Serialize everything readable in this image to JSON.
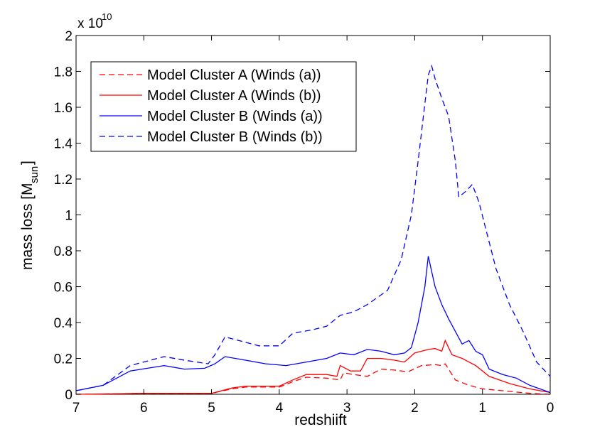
{
  "chart_data": {
    "type": "line",
    "title": "",
    "xlabel": "redshiift",
    "ylabel": "mass loss [M",
    "ylabel_subscript": "sun",
    "ylabel_suffix": "]",
    "y_multiplier_prefix": "x 10",
    "y_multiplier_exponent": "10",
    "xlim": [
      7,
      0
    ],
    "ylim": [
      0,
      2
    ],
    "xticks": [
      7,
      6,
      5,
      4,
      3,
      2,
      1,
      0
    ],
    "xtick_labels": [
      "7",
      "6",
      "5",
      "4",
      "3",
      "2",
      "1",
      "0"
    ],
    "yticks": [
      0,
      0.2,
      0.4,
      0.6,
      0.8,
      1,
      1.2,
      1.4,
      1.6,
      1.8,
      2
    ],
    "ytick_labels": [
      "0",
      "0.2",
      "0.4",
      "0.6",
      "0.8",
      "1",
      "1.2",
      "1.4",
      "1.6",
      "1.8",
      "2"
    ],
    "grid": false,
    "legend_position": "top-left",
    "series": [
      {
        "name": "Model Cluster A (Winds (a))",
        "color": "#ff0000",
        "style": "dashed",
        "points": [
          [
            7,
            0.0
          ],
          [
            6,
            0.005
          ],
          [
            5,
            0.005
          ],
          [
            4.7,
            0.03
          ],
          [
            4.5,
            0.04
          ],
          [
            4,
            0.04
          ],
          [
            3.8,
            0.07
          ],
          [
            3.6,
            0.095
          ],
          [
            3.3,
            0.09
          ],
          [
            3.1,
            0.08
          ],
          [
            3.05,
            0.12
          ],
          [
            2.9,
            0.11
          ],
          [
            2.7,
            0.1
          ],
          [
            2.5,
            0.14
          ],
          [
            2.3,
            0.135
          ],
          [
            2.1,
            0.125
          ],
          [
            1.9,
            0.16
          ],
          [
            1.7,
            0.165
          ],
          [
            1.6,
            0.16
          ],
          [
            1.55,
            0.17
          ],
          [
            1.4,
            0.08
          ],
          [
            1.2,
            0.05
          ],
          [
            1.0,
            0.03
          ],
          [
            0.7,
            0.02
          ],
          [
            0.3,
            0.005
          ],
          [
            0,
            0.0
          ]
        ]
      },
      {
        "name": "Model Cluster A (Winds (b))",
        "color": "#ff0000",
        "style": "solid",
        "points": [
          [
            7,
            0.0
          ],
          [
            6,
            0.005
          ],
          [
            5,
            0.005
          ],
          [
            4.7,
            0.035
          ],
          [
            4.5,
            0.045
          ],
          [
            4,
            0.045
          ],
          [
            3.8,
            0.08
          ],
          [
            3.6,
            0.11
          ],
          [
            3.3,
            0.11
          ],
          [
            3.15,
            0.1
          ],
          [
            3.1,
            0.16
          ],
          [
            2.95,
            0.13
          ],
          [
            2.8,
            0.13
          ],
          [
            2.7,
            0.2
          ],
          [
            2.5,
            0.2
          ],
          [
            2.3,
            0.19
          ],
          [
            2.15,
            0.18
          ],
          [
            2.0,
            0.23
          ],
          [
            1.8,
            0.25
          ],
          [
            1.7,
            0.255
          ],
          [
            1.6,
            0.24
          ],
          [
            1.55,
            0.3
          ],
          [
            1.45,
            0.22
          ],
          [
            1.3,
            0.2
          ],
          [
            1.1,
            0.16
          ],
          [
            0.9,
            0.1
          ],
          [
            0.6,
            0.06
          ],
          [
            0.3,
            0.03
          ],
          [
            0,
            0.01
          ]
        ]
      },
      {
        "name": "Model Cluster B (Winds (a))",
        "color": "#0000ff",
        "style": "solid",
        "points": [
          [
            7,
            0.02
          ],
          [
            6.6,
            0.05
          ],
          [
            6.2,
            0.13
          ],
          [
            5.7,
            0.16
          ],
          [
            5.4,
            0.14
          ],
          [
            5.1,
            0.145
          ],
          [
            4.95,
            0.17
          ],
          [
            4.8,
            0.21
          ],
          [
            4.5,
            0.19
          ],
          [
            4.2,
            0.17
          ],
          [
            3.9,
            0.16
          ],
          [
            3.6,
            0.18
          ],
          [
            3.3,
            0.2
          ],
          [
            3.1,
            0.23
          ],
          [
            2.9,
            0.22
          ],
          [
            2.7,
            0.25
          ],
          [
            2.5,
            0.24
          ],
          [
            2.3,
            0.22
          ],
          [
            2.15,
            0.23
          ],
          [
            2.05,
            0.26
          ],
          [
            1.95,
            0.4
          ],
          [
            1.85,
            0.6
          ],
          [
            1.8,
            0.77
          ],
          [
            1.7,
            0.6
          ],
          [
            1.6,
            0.5
          ],
          [
            1.5,
            0.42
          ],
          [
            1.4,
            0.35
          ],
          [
            1.3,
            0.28
          ],
          [
            1.2,
            0.3
          ],
          [
            1.1,
            0.24
          ],
          [
            1.0,
            0.22
          ],
          [
            0.9,
            0.14
          ],
          [
            0.7,
            0.11
          ],
          [
            0.5,
            0.09
          ],
          [
            0.3,
            0.05
          ],
          [
            0,
            0.01
          ]
        ]
      },
      {
        "name": "Model Cluster B (Winds (b))",
        "color": "#0000ff",
        "style": "dashed",
        "points": [
          [
            7,
            0.02
          ],
          [
            6.6,
            0.05
          ],
          [
            6.2,
            0.16
          ],
          [
            5.7,
            0.21
          ],
          [
            5.4,
            0.19
          ],
          [
            5.05,
            0.17
          ],
          [
            4.95,
            0.22
          ],
          [
            4.8,
            0.32
          ],
          [
            4.6,
            0.3
          ],
          [
            4.3,
            0.27
          ],
          [
            4.0,
            0.27
          ],
          [
            3.8,
            0.34
          ],
          [
            3.5,
            0.36
          ],
          [
            3.3,
            0.38
          ],
          [
            3.1,
            0.44
          ],
          [
            2.9,
            0.46
          ],
          [
            2.7,
            0.5
          ],
          [
            2.4,
            0.58
          ],
          [
            2.2,
            0.75
          ],
          [
            2.05,
            1.0
          ],
          [
            1.95,
            1.3
          ],
          [
            1.85,
            1.62
          ],
          [
            1.8,
            1.78
          ],
          [
            1.75,
            1.83
          ],
          [
            1.7,
            1.76
          ],
          [
            1.6,
            1.65
          ],
          [
            1.5,
            1.55
          ],
          [
            1.4,
            1.3
          ],
          [
            1.35,
            1.1
          ],
          [
            1.25,
            1.13
          ],
          [
            1.15,
            1.17
          ],
          [
            1.05,
            1.07
          ],
          [
            0.95,
            0.92
          ],
          [
            0.8,
            0.7
          ],
          [
            0.6,
            0.5
          ],
          [
            0.4,
            0.35
          ],
          [
            0.2,
            0.18
          ],
          [
            0,
            0.1
          ]
        ]
      }
    ]
  }
}
